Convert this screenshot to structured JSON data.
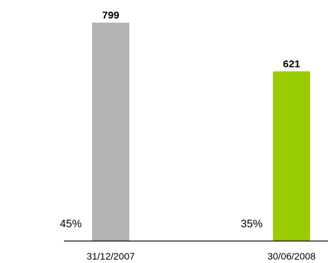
{
  "chart_data": {
    "type": "bar",
    "categories": [
      "31/12/2007",
      "30/06/2008"
    ],
    "values": [
      799,
      621
    ],
    "value_labels": [
      "799",
      "621"
    ],
    "percent_labels": [
      "45%",
      "35%"
    ],
    "colors": [
      "#b3b3b3",
      "#99cc00"
    ],
    "title": "",
    "xlabel": "",
    "ylabel": "",
    "ylim": [
      0,
      799
    ],
    "grid": false
  }
}
